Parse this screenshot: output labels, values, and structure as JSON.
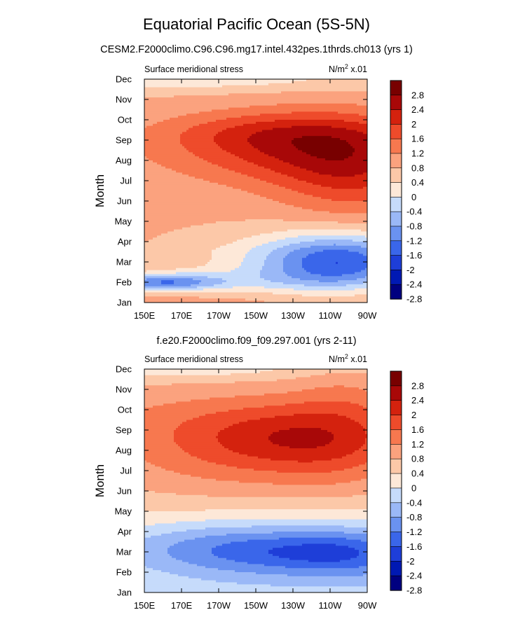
{
  "main_title": "Equatorial Pacific Ocean (5S-5N)",
  "palette": [
    "#000080",
    "#0019b3",
    "#1e3ed8",
    "#3a66ea",
    "#6a92f0",
    "#9ab8f7",
    "#c6dbfb",
    "#fde8d8",
    "#fcc8a8",
    "#fba27e",
    "#f7784f",
    "#ee4b2b",
    "#d4220e",
    "#a80808",
    "#780000"
  ],
  "chart_data": [
    {
      "type": "contour",
      "title": "CESM2.F2000climo.C96.C96.mg17.intel.432pes.1thrds.ch013 (yrs 1)",
      "subtitle_left": "Surface meridional stress",
      "units_prefix": "N/m",
      "units_exp": "2",
      "units_suffix": " x.01",
      "ylabel": "Month",
      "xticks": [
        "150E",
        "170E",
        "170W",
        "150W",
        "130W",
        "110W",
        "90W"
      ],
      "yticks": [
        "Jan",
        "Feb",
        "Mar",
        "Apr",
        "May",
        "Jun",
        "Jul",
        "Aug",
        "Sep",
        "Oct",
        "Nov",
        "Dec"
      ],
      "colorbar_labels": [
        "2.8",
        "2.4",
        "2",
        "1.6",
        "1.2",
        "0.8",
        "0.4",
        "0",
        "-0.4",
        "-0.8",
        "-1.2",
        "-1.6",
        "-2",
        "-2.4",
        "-2.8"
      ],
      "levels": [
        -2.8,
        -2.4,
        -2.0,
        -1.6,
        -1.2,
        -0.8,
        -0.4,
        0,
        0.4,
        0.8,
        1.2,
        1.6,
        2.0,
        2.4,
        2.8
      ],
      "field_centers": [
        [
          0.0,
          9.8,
          0.1,
          1.6,
          1.2
        ],
        [
          0.0,
          10.4,
          0.1,
          1.6,
          1.0
        ],
        [
          0.0,
          4.0,
          0.1,
          4.0,
          1.6
        ],
        [
          0.0,
          7.5,
          0.5,
          3.0,
          2.5
        ],
        [
          1.0,
          1.0,
          0.5,
          3.0,
          2.5
        ],
        [
          0.0,
          1.5,
          0.35,
          2.5,
          4.0
        ],
        [
          0.0,
          1.6,
          -0.05,
          0.8,
          0.25
        ],
        [
          0.0,
          2.6,
          -0.05,
          0.9,
          0.2
        ],
        [
          0.62,
          7.6,
          1.05,
          0.5,
          1.8
        ],
        [
          0.95,
          6.7,
          1.2,
          0.35,
          2.5
        ],
        [
          0.55,
          8.4,
          0.55,
          0.5,
          1.0
        ],
        [
          0.85,
          2.0,
          -1.55,
          0.35,
          1.5
        ],
        [
          0.62,
          2.0,
          -0.75,
          0.7,
          1.5
        ],
        [
          0.95,
          2.0,
          -0.6,
          0.3,
          1.2
        ],
        [
          0.1,
          1.0,
          -1.3,
          0.25,
          0.4
        ],
        [
          0.0,
          0.95,
          -0.6,
          0.25,
          0.5
        ],
        [
          0.3,
          0.9,
          -0.3,
          0.4,
          0.6
        ],
        [
          0.55,
          1.1,
          -0.3,
          0.5,
          0.6
        ],
        [
          0.0,
          11.0,
          -0.35,
          0.35,
          0.4
        ],
        [
          0.4,
          11.0,
          -0.4,
          0.45,
          0.5
        ]
      ]
    },
    {
      "type": "contour",
      "title": "f.e20.F2000climo.f09_f09.297.001 (yrs 2-11)",
      "subtitle_left": "Surface meridional stress",
      "units_prefix": "N/m",
      "units_exp": "2",
      "units_suffix": " x.01",
      "ylabel": "Month",
      "xticks": [
        "150E",
        "170E",
        "170W",
        "150W",
        "130W",
        "110W",
        "90W"
      ],
      "yticks": [
        "Jan",
        "Feb",
        "Mar",
        "Apr",
        "May",
        "Jun",
        "Jul",
        "Aug",
        "Sep",
        "Oct",
        "Nov",
        "Dec"
      ],
      "colorbar_labels": [
        "2.8",
        "2.4",
        "2",
        "1.6",
        "1.2",
        "0.8",
        "0.4",
        "0",
        "-0.4",
        "-0.8",
        "-1.2",
        "-1.6",
        "-2",
        "-2.4",
        "-2.8"
      ],
      "levels": [
        -2.8,
        -2.4,
        -2.0,
        -1.6,
        -1.2,
        -0.8,
        -0.4,
        0,
        0.4,
        0.8,
        1.2,
        1.6,
        2.0,
        2.4,
        2.8
      ],
      "field_centers": [
        [
          0.0,
          9.0,
          0.4,
          2.5,
          1.8
        ],
        [
          0.0,
          6.0,
          0.2,
          0.9,
          3.0
        ],
        [
          0.0,
          1.0,
          0.2,
          0.6,
          1.0
        ],
        [
          0.5,
          1.0,
          -0.6,
          2.5,
          2.2
        ],
        [
          0.55,
          7.2,
          1.05,
          0.7,
          2.4
        ],
        [
          0.9,
          7.5,
          0.5,
          0.3,
          2.5
        ],
        [
          0.62,
          7.6,
          0.55,
          0.4,
          1.4
        ],
        [
          0.9,
          10.2,
          0.2,
          0.2,
          1.5
        ],
        [
          0.65,
          2.1,
          -0.85,
          0.75,
          1.6
        ],
        [
          0.95,
          2.0,
          -0.5,
          0.25,
          1.2
        ],
        [
          0.75,
          2.0,
          -0.5,
          0.3,
          0.9
        ],
        [
          0.35,
          2.2,
          -0.5,
          0.4,
          1.2
        ],
        [
          0.0,
          11.0,
          -0.3,
          0.4,
          0.35
        ],
        [
          0.3,
          11.0,
          -0.3,
          0.5,
          0.45
        ]
      ]
    }
  ]
}
